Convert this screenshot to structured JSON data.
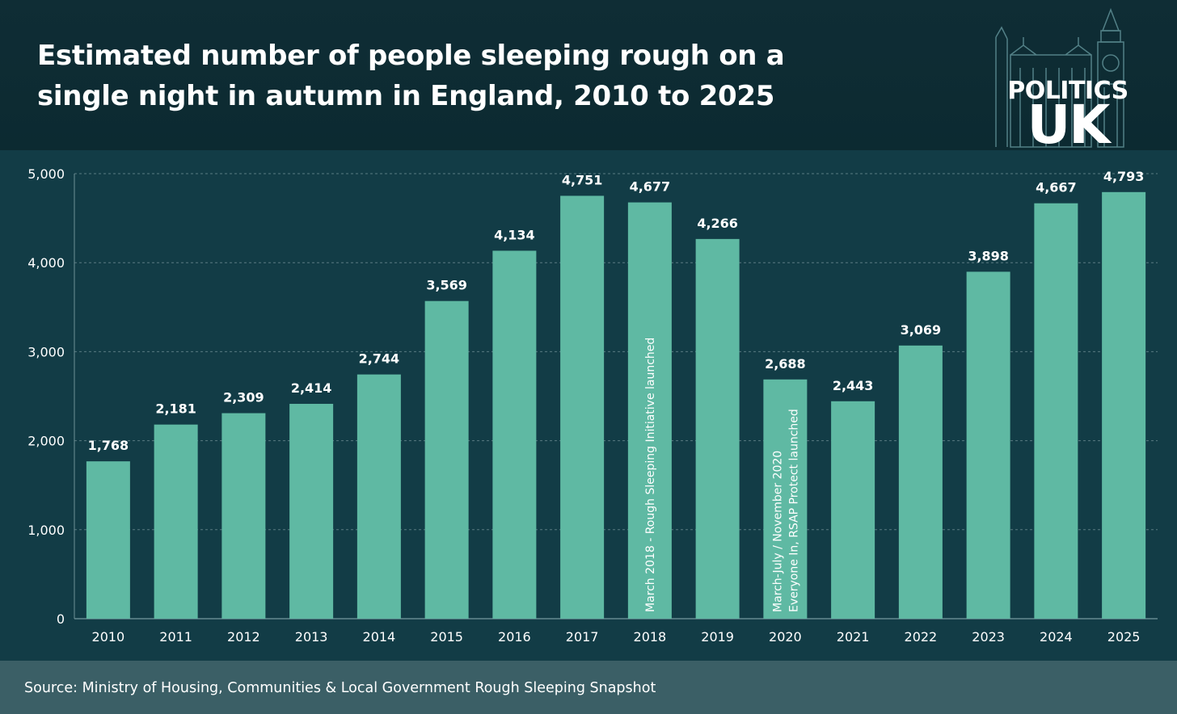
{
  "header": {
    "title": "Estimated number of people sleeping rough on a single night in autumn in England, 2010 to 2025"
  },
  "logo": {
    "line1": "POLITICS",
    "line2": "UK"
  },
  "footer": {
    "source": "Source: Ministry of Housing, Communities & Local Government Rough Sleeping Snapshot"
  },
  "colors": {
    "bar": "#5fb9a3",
    "background": "#123c46",
    "header": "#0f2d35",
    "footer": "#3b5f66",
    "grid": "#5a7b82"
  },
  "chart_data": {
    "type": "bar",
    "title": "Estimated number of people sleeping rough on a single night in autumn in England, 2010 to 2025",
    "categories": [
      "2010",
      "2011",
      "2012",
      "2013",
      "2014",
      "2015",
      "2016",
      "2017",
      "2018",
      "2019",
      "2020",
      "2021",
      "2022",
      "2023",
      "2024",
      "2025"
    ],
    "values": [
      1768,
      2181,
      2309,
      2414,
      2744,
      3569,
      4134,
      4751,
      4677,
      4266,
      2688,
      2443,
      3069,
      3898,
      4667,
      4793
    ],
    "value_labels": [
      "1,768",
      "2,181",
      "2,309",
      "2,414",
      "2,744",
      "3,569",
      "4,134",
      "4,751",
      "4,677",
      "4,266",
      "2,688",
      "2,443",
      "3,069",
      "3,898",
      "4,667",
      "4,793"
    ],
    "ylim": [
      0,
      5000
    ],
    "yticks": [
      0,
      1000,
      2000,
      3000,
      4000,
      5000
    ],
    "ytick_labels": [
      "0",
      "1,000",
      "2,000",
      "3,000",
      "4,000",
      "5,000"
    ],
    "grid": true,
    "annotations": [
      {
        "category": "2018",
        "lines": [
          "March 2018 - Rough Sleeping Initiative launched"
        ]
      },
      {
        "category": "2020",
        "lines": [
          "March-July / November 2020",
          "Everyone In, RSAP Protect launched"
        ]
      }
    ]
  }
}
